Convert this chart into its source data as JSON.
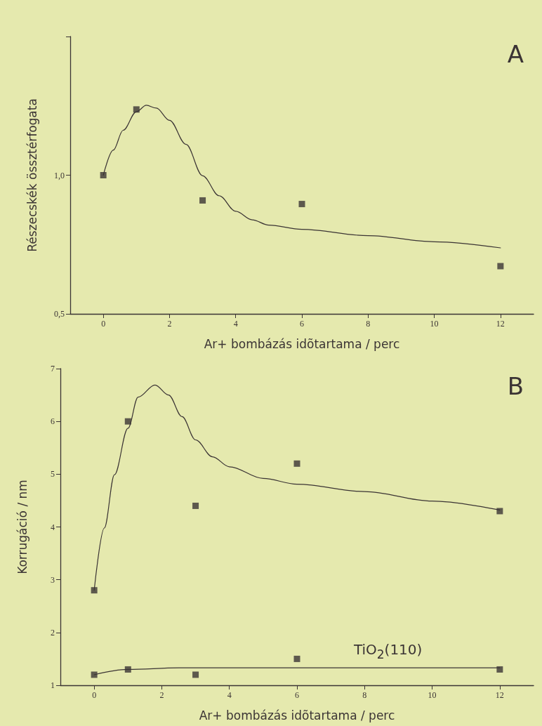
{
  "chart_data": [
    {
      "type": "scatter",
      "xlabel": "Ar+ bombázás idõtartama / perc",
      "ylabel": "Részecskék össztérfogata",
      "xlim": [
        -1,
        13
      ],
      "xticks": [
        0,
        2,
        4,
        6,
        8,
        10,
        12
      ],
      "ylim": [
        0.5,
        1.5
      ],
      "yticks": [
        {
          "value": 0.5,
          "label": "0,5"
        },
        {
          "value": 1.0,
          "label": "1,0"
        },
        {
          "value": 1.5,
          "label": null
        }
      ],
      "grid": false,
      "annotations": [
        "A"
      ],
      "series": [
        {
          "marker": "square",
          "color": "#3b3434",
          "x": [
            0,
            1,
            3,
            6,
            12
          ],
          "values": [
            1.0,
            1.237,
            0.909,
            0.896,
            0.672
          ]
        },
        {
          "type": "line",
          "marker": "none",
          "line_style": "solid",
          "color": "#3b3434",
          "x": [
            0,
            0.3,
            0.6,
            1,
            1.3,
            1.6,
            2,
            2.5,
            3,
            3.5,
            4,
            4.5,
            5,
            6,
            8,
            10,
            12
          ],
          "values": [
            1.0,
            1.09,
            1.162,
            1.229,
            1.252,
            1.242,
            1.198,
            1.111,
            0.998,
            0.926,
            0.87,
            0.839,
            0.82,
            0.805,
            0.782,
            0.76,
            0.738
          ]
        }
      ]
    },
    {
      "type": "scatter",
      "xlabel": "Ar+ bombázás idõtartama / perc",
      "ylabel": "Korrugáció / nm",
      "xlim": [
        -1,
        13
      ],
      "xticks": [
        0,
        2,
        4,
        6,
        8,
        10,
        12
      ],
      "ylim": [
        1,
        7
      ],
      "yticks": [
        1,
        2,
        3,
        4,
        5,
        6,
        7
      ],
      "grid": false,
      "annotations": [
        "B",
        "TiO$_{2}$(110)"
      ],
      "series": [
        {
          "marker": "square",
          "color": "#3b3434",
          "x": [
            0,
            1,
            3,
            6,
            12
          ],
          "values": [
            2.8,
            6.0,
            4.4,
            5.2,
            4.3
          ]
        },
        {
          "type": "line",
          "marker": "none",
          "line_style": "solid",
          "color": "#3b3434",
          "x": [
            0,
            0.3,
            0.6,
            1,
            1.3,
            1.8,
            2.2,
            2.6,
            3,
            3.5,
            4,
            5,
            6,
            8,
            10,
            12
          ],
          "values": [
            2.8,
            3.98,
            4.99,
            5.87,
            6.46,
            6.69,
            6.5,
            6.09,
            5.65,
            5.33,
            5.14,
            4.92,
            4.81,
            4.67,
            4.49,
            4.32
          ]
        },
        {
          "marker": "square",
          "color": "#3b3434",
          "x": [
            0,
            1,
            3,
            6,
            12
          ],
          "values": [
            1.2,
            1.3,
            1.2,
            1.5,
            1.3
          ]
        },
        {
          "type": "line",
          "marker": "none",
          "line_style": "solid",
          "color": "#3b3434",
          "x": [
            0,
            1,
            2.5,
            12
          ],
          "values": [
            1.2,
            1.3,
            1.33,
            1.33
          ]
        }
      ]
    }
  ]
}
